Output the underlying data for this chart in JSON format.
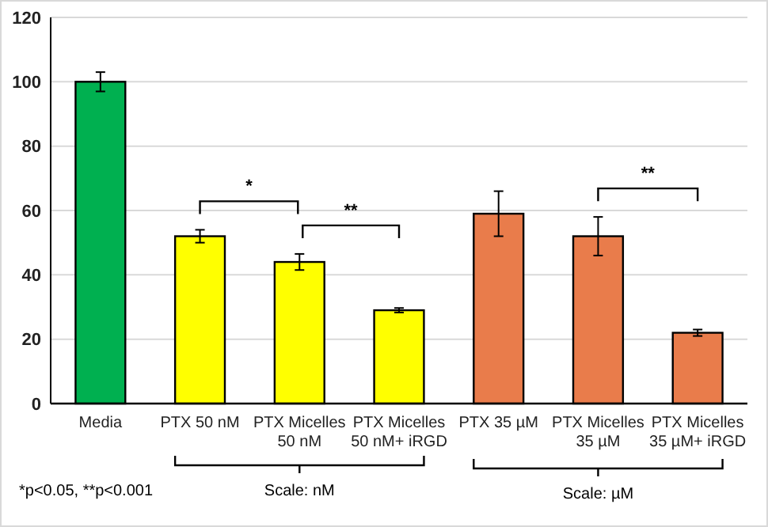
{
  "chart_data": {
    "type": "bar",
    "categories": [
      "Media",
      "PTX 50 nM",
      "PTX Micelles\n50 nM",
      "PTX Micelles\n50 nM+ iRGD",
      "PTX 35 µM",
      "PTX Micelles\n35 µM",
      "PTX Micelles\n35 µM+ iRGD"
    ],
    "values": [
      100,
      52,
      44,
      29,
      59,
      52,
      22
    ],
    "colors": [
      "#00b050",
      "#ffff00",
      "#ffff00",
      "#ffff00",
      "#e97c4b",
      "#e97c4b",
      "#e97c4b"
    ],
    "errors": [
      3,
      2,
      2.5,
      0.7,
      7,
      6,
      1
    ],
    "ylim": [
      0,
      120
    ],
    "yticks": [
      0,
      20,
      40,
      60,
      80,
      100,
      120
    ],
    "grid": "y",
    "annotations": [
      "*",
      "**",
      "**",
      "Scale: nM",
      "Scale: µM",
      "*p<0.05, **p<0.001"
    ]
  }
}
